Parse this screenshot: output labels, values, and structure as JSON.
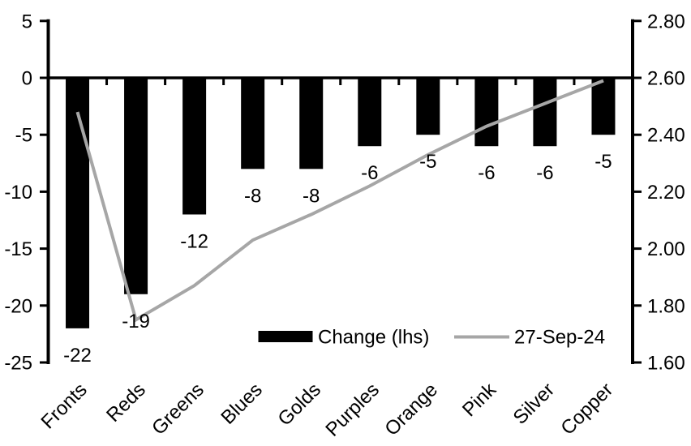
{
  "chart_data": {
    "type": "combo-bar-line",
    "title": "",
    "categories": [
      "Fronts",
      "Reds",
      "Greens",
      "Blues",
      "Golds",
      "Purples",
      "Orange",
      "Pink",
      "Silver",
      "Copper"
    ],
    "series": [
      {
        "name": "Change (lhs)",
        "type": "bar",
        "axis": "left",
        "color": "#000000",
        "values": [
          -22,
          -19,
          -12,
          -8,
          -8,
          -6,
          -5,
          -6,
          -6,
          -5
        ],
        "data_labels": [
          "-22",
          "-19",
          "-12",
          "-8",
          "-8",
          "-6",
          "-5",
          "-6",
          "-6",
          "-5"
        ]
      },
      {
        "name": "27-Sep-24",
        "type": "line",
        "axis": "right",
        "color": "#a6a6a6",
        "values": [
          2.48,
          1.75,
          1.87,
          2.03,
          2.12,
          2.22,
          2.33,
          2.43,
          2.51,
          2.59
        ]
      }
    ],
    "left_axis": {
      "min": -25,
      "max": 5,
      "step": 5,
      "tick_labels": [
        "5",
        "0",
        "-5",
        "-10",
        "-15",
        "-20",
        "-25"
      ]
    },
    "right_axis": {
      "min": 1.6,
      "max": 2.8,
      "step": 0.2,
      "tick_labels": [
        "2.80",
        "2.60",
        "2.40",
        "2.20",
        "2.00",
        "1.80",
        "1.60"
      ]
    },
    "legend": {
      "position": "inside-bottom",
      "entries": [
        {
          "label": "Change (lhs)",
          "marker": "bar",
          "color": "#000000"
        },
        {
          "label": "27-Sep-24",
          "marker": "line",
          "color": "#a6a6a6"
        }
      ]
    },
    "grid": false,
    "axis_color": "#000000",
    "background": "#ffffff",
    "category_label_rotation_deg": -45
  }
}
